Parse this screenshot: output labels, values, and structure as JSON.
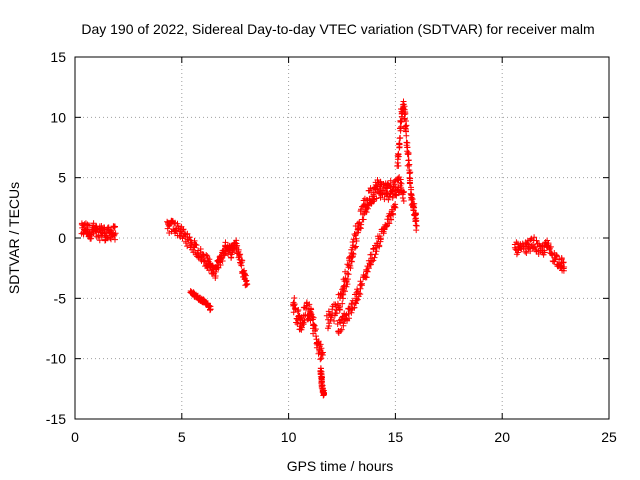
{
  "chart_data": {
    "type": "scatter",
    "title": "Day 190 of 2022, Sidereal Day-to-day VTEC variation (SDTVAR) for receiver malm",
    "xlabel": "GPS time / hours",
    "ylabel": "SDTVAR / TECUs",
    "xlim": [
      0,
      25
    ],
    "ylim": [
      -15,
      15
    ],
    "xticks": [
      0,
      5,
      10,
      15,
      20,
      25
    ],
    "yticks": [
      -15,
      -10,
      -5,
      0,
      5,
      10,
      15
    ],
    "grid": true,
    "marker": "+",
    "color": "#ff0000",
    "series": [
      {
        "name": "SDTVAR",
        "segments": [
          {
            "x": [
              0.3,
              0.5,
              0.7,
              0.9,
              1.1,
              1.3,
              1.5,
              1.7,
              1.9
            ],
            "y": [
              0.6,
              0.8,
              0.5,
              0.7,
              0.3,
              0.6,
              0.2,
              0.5,
              0.4
            ],
            "spread": 1.2
          },
          {
            "x": [
              4.3,
              4.6,
              4.9,
              5.2,
              5.5,
              5.8,
              6.1,
              6.3
            ],
            "y": [
              0.8,
              1.0,
              0.6,
              0.0,
              -0.6,
              -1.2,
              -1.8,
              -2.2
            ],
            "spread": 1.1
          },
          {
            "x": [
              5.4,
              5.6,
              5.8,
              6.0,
              6.2,
              6.35
            ],
            "y": [
              -4.5,
              -4.7,
              -5.0,
              -5.2,
              -5.5,
              -5.9
            ],
            "spread": 0.3
          },
          {
            "x": [
              6.3,
              6.5,
              6.7,
              6.9,
              7.1,
              7.3,
              7.5,
              7.7,
              7.9,
              8.05
            ],
            "y": [
              -2.0,
              -3.0,
              -2.2,
              -1.4,
              -0.6,
              -1.2,
              -0.4,
              -1.5,
              -2.8,
              -3.8
            ],
            "spread": 1.0
          },
          {
            "x": [
              10.2,
              10.4,
              10.6,
              10.8,
              11.0,
              11.2,
              11.4,
              11.6
            ],
            "y": [
              -5.2,
              -6.5,
              -7.2,
              -6.0,
              -6.2,
              -7.4,
              -9.2,
              -9.7
            ],
            "spread": 1.5
          },
          {
            "x": [
              11.5,
              11.55,
              11.6,
              11.65
            ],
            "y": [
              -10.8,
              -11.8,
              -12.6,
              -13.0
            ],
            "spread": 0.3
          },
          {
            "x": [
              11.8,
              12.1,
              12.4,
              12.6,
              12.8,
              13.0,
              13.2,
              13.4,
              13.6,
              13.8,
              14.0,
              14.2,
              14.4,
              14.6,
              14.8,
              15.0,
              15.2,
              15.4
            ],
            "y": [
              -6.8,
              -6.2,
              -5.3,
              -4.0,
              -2.5,
              -1.0,
              0.5,
              1.8,
              2.6,
              3.4,
              3.9,
              4.2,
              4.0,
              3.8,
              4.1,
              4.2,
              4.5,
              3.8
            ],
            "spread": 1.6
          },
          {
            "x": [
              12.3,
              12.6,
              12.9,
              13.2,
              13.5,
              13.8,
              14.1,
              14.4,
              14.7,
              15.0
            ],
            "y": [
              -7.5,
              -6.8,
              -6.0,
              -4.8,
              -3.5,
              -2.0,
              -0.8,
              0.5,
              1.5,
              2.5
            ],
            "spread": 1.0
          },
          {
            "x": [
              15.1,
              15.2,
              15.3,
              15.4,
              15.5,
              15.6,
              15.7,
              15.8,
              15.9,
              16.0
            ],
            "y": [
              6.0,
              8.0,
              10.5,
              11.0,
              9.0,
              6.5,
              4.5,
              3.0,
              2.0,
              1.0
            ],
            "spread": 1.0
          },
          {
            "x": [
              20.6,
              20.9,
              21.2,
              21.5,
              21.8,
              22.1,
              22.4,
              22.7,
              22.9
            ],
            "y": [
              -0.8,
              -1.0,
              -0.7,
              -0.4,
              -1.2,
              -0.6,
              -1.5,
              -2.0,
              -2.4
            ],
            "spread": 1.0
          }
        ]
      }
    ]
  }
}
